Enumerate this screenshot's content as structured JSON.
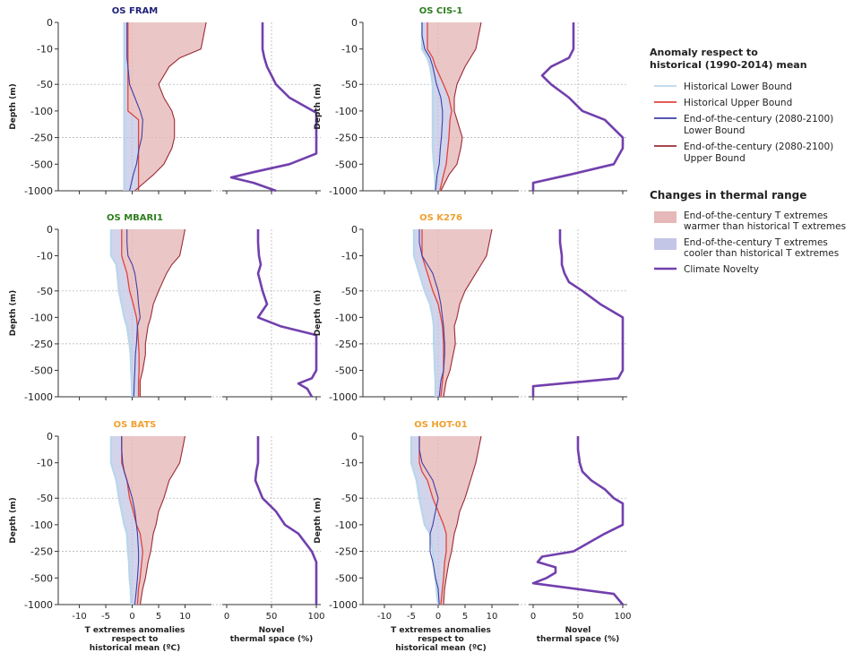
{
  "figure": {
    "ylabel": "Depth (m)",
    "xlabel_anom": [
      "T extremes anomalies",
      "respect to",
      "historical mean (ºC)"
    ],
    "xlabel_novel": [
      "Novel",
      "thermal space (%)"
    ],
    "ytick_labels": [
      "0",
      "-10",
      "-50",
      "-100",
      "-250",
      "-500",
      "-1000"
    ],
    "anom_tick_labels": [
      "-10",
      "-5",
      "0",
      "5",
      "10"
    ],
    "novel_tick_labels": [
      "0",
      "50",
      "100"
    ]
  },
  "legend": {
    "title1": [
      "Anomaly respect to",
      "historical (1990-2014) mean"
    ],
    "items1": [
      {
        "lines": [
          "Historical Lower Bound"
        ],
        "color": "#b9d7ea"
      },
      {
        "lines": [
          "Historical Upper Bound"
        ],
        "color": "#e0443d"
      },
      {
        "lines": [
          "End-of-the-century (2080-2100)",
          "Lower Bound"
        ],
        "color": "#3f3fa8"
      },
      {
        "lines": [
          "End-of-the-century (2080-2100)",
          "Upper Bound"
        ],
        "color": "#9b2b35"
      }
    ],
    "title2": "Changes in thermal range",
    "items2": [
      {
        "lines": [
          "End-of-the-century T extremes",
          "warmer than historical T extremes"
        ],
        "color": "#e6b8b8",
        "kind": "patch"
      },
      {
        "lines": [
          "End-of-the-century T extremes",
          "cooler than historical T extremes"
        ],
        "color": "#c3c6e6",
        "kind": "patch"
      },
      {
        "lines": [
          "Climate Novelty"
        ],
        "color": "#7240ad",
        "kind": "line"
      }
    ]
  },
  "colors": {
    "hist_lower": "#b9d7ea",
    "hist_upper": "#e0443d",
    "eoc_lower": "#3f3fa8",
    "eoc_upper": "#9b2b35",
    "warm_fill": "#e6b8b8",
    "cool_fill": "#c3c6e6",
    "novelty": "#7240ad",
    "title_navy": "#1f1f7a",
    "title_green": "#2e7d1f",
    "title_orange": "#f0a030"
  },
  "chart_data": {
    "type": "line",
    "depths": [
      0,
      5,
      10,
      20,
      30,
      50,
      75,
      100,
      150,
      250,
      350,
      500,
      700,
      1000
    ],
    "panels": [
      {
        "title": "OS FRAM",
        "title_color": "#1f1f7a",
        "hist_lower": [
          -1.5,
          -1.5,
          -1.5,
          -1.5,
          -1.5,
          -1.5,
          -1.5,
          -1.5,
          -1.5,
          -1.5,
          -1.5,
          -1.5,
          -1.5,
          -1.5
        ],
        "hist_upper": [
          -0.8,
          -0.8,
          -0.8,
          -0.8,
          -0.8,
          -0.8,
          -0.8,
          -0.8,
          1.2,
          1.2,
          1.2,
          1.2,
          1.2,
          1.2
        ],
        "eoc_lower": [
          -1.0,
          -1.0,
          -1.0,
          -1.0,
          -0.8,
          -0.5,
          0.5,
          1.5,
          2.0,
          1.8,
          1.3,
          0.8,
          0.2,
          -0.5
        ],
        "eoc_upper": [
          14.0,
          13.5,
          13.0,
          9.0,
          7.0,
          5.0,
          6.0,
          7.5,
          8.0,
          8.0,
          7.5,
          6.0,
          4.0,
          0.5
        ],
        "novelty": [
          {
            "d": 0,
            "v": 40
          },
          {
            "d": 5,
            "v": 40
          },
          {
            "d": 10,
            "v": 40
          },
          {
            "d": 20,
            "v": 42
          },
          {
            "d": 30,
            "v": 45
          },
          {
            "d": 50,
            "v": 55
          },
          {
            "d": 75,
            "v": 70
          },
          {
            "d": 110,
            "v": 100
          },
          {
            "d": 150,
            "v": 100
          },
          {
            "d": 250,
            "v": 100
          },
          {
            "d": 400,
            "v": 100
          },
          {
            "d": 500,
            "v": 70
          },
          {
            "d": 650,
            "v": 30
          },
          {
            "d": 750,
            "v": 5
          },
          {
            "d": 850,
            "v": 30
          },
          {
            "d": 1000,
            "v": 55
          }
        ]
      },
      {
        "title": "OS CIS-1",
        "title_color": "#2e7d1f",
        "hist_lower": [
          -3.0,
          -3.0,
          -3.0,
          -2.0,
          -1.5,
          -1.0,
          -1.0,
          -1.0,
          -1.0,
          -1.0,
          -1.0,
          -0.8,
          -0.6,
          -0.5
        ],
        "hist_upper": [
          -2.0,
          -2.0,
          -2.0,
          -1.0,
          -0.5,
          1.0,
          2.0,
          2.5,
          2.2,
          2.0,
          1.8,
          1.5,
          1.0,
          0.3
        ],
        "eoc_lower": [
          -3.0,
          -3.0,
          -2.5,
          -1.5,
          -1.0,
          -0.3,
          0.5,
          0.8,
          0.8,
          0.6,
          0.4,
          0.2,
          -0.2,
          -0.5
        ],
        "eoc_upper": [
          8.0,
          7.5,
          7.0,
          6.0,
          5.0,
          3.5,
          3.0,
          3.0,
          3.5,
          4.5,
          4.2,
          3.5,
          2.0,
          0.5
        ],
        "novelty": [
          {
            "d": 0,
            "v": 45
          },
          {
            "d": 5,
            "v": 45
          },
          {
            "d": 10,
            "v": 45
          },
          {
            "d": 20,
            "v": 40
          },
          {
            "d": 30,
            "v": 20
          },
          {
            "d": 40,
            "v": 10
          },
          {
            "d": 50,
            "v": 20
          },
          {
            "d": 75,
            "v": 40
          },
          {
            "d": 100,
            "v": 55
          },
          {
            "d": 150,
            "v": 80
          },
          {
            "d": 250,
            "v": 100
          },
          {
            "d": 350,
            "v": 100
          },
          {
            "d": 500,
            "v": 90
          },
          {
            "d": 700,
            "v": 40
          },
          {
            "d": 850,
            "v": 0
          },
          {
            "d": 1000,
            "v": 0
          }
        ]
      },
      {
        "title": "OS MBARI1",
        "title_color": "#2e7d1f",
        "hist_lower": [
          -4.0,
          -4.0,
          -4.0,
          -3.0,
          -2.8,
          -2.5,
          -2.0,
          -1.5,
          -1.0,
          -0.5,
          -0.3,
          -0.2,
          -0.1,
          0.0
        ],
        "hist_upper": [
          -2.0,
          -2.0,
          -2.0,
          -1.5,
          -1.0,
          -0.5,
          0.2,
          0.8,
          1.0,
          1.2,
          1.3,
          1.3,
          1.2,
          1.2
        ],
        "eoc_lower": [
          -1.0,
          -1.0,
          -0.8,
          0.0,
          0.5,
          1.0,
          1.2,
          1.5,
          1.0,
          0.8,
          0.6,
          0.5,
          0.4,
          0.3
        ],
        "eoc_upper": [
          10.0,
          9.5,
          9.0,
          7.5,
          6.5,
          5.0,
          4.0,
          3.5,
          3.0,
          2.5,
          2.5,
          2.0,
          1.5,
          1.5
        ],
        "novelty": [
          {
            "d": 0,
            "v": 35
          },
          {
            "d": 5,
            "v": 35
          },
          {
            "d": 10,
            "v": 36
          },
          {
            "d": 20,
            "v": 38
          },
          {
            "d": 30,
            "v": 35
          },
          {
            "d": 50,
            "v": 40
          },
          {
            "d": 75,
            "v": 45
          },
          {
            "d": 100,
            "v": 35
          },
          {
            "d": 150,
            "v": 60
          },
          {
            "d": 200,
            "v": 100
          },
          {
            "d": 250,
            "v": 100
          },
          {
            "d": 350,
            "v": 100
          },
          {
            "d": 500,
            "v": 100
          },
          {
            "d": 650,
            "v": 95
          },
          {
            "d": 750,
            "v": 80
          },
          {
            "d": 850,
            "v": 90
          },
          {
            "d": 1000,
            "v": 95
          }
        ]
      },
      {
        "title": "OS K276",
        "title_color": "#f0a030",
        "hist_lower": [
          -4.5,
          -4.5,
          -4.5,
          -4.0,
          -3.5,
          -2.5,
          -1.5,
          -1.0,
          -0.8,
          -0.8,
          -0.7,
          -0.6,
          -0.5,
          -0.5
        ],
        "hist_upper": [
          -3.0,
          -3.0,
          -3.0,
          -2.5,
          -2.0,
          -1.0,
          0.0,
          0.5,
          0.8,
          1.0,
          1.0,
          1.0,
          0.8,
          0.5
        ],
        "eoc_lower": [
          -3.5,
          -3.5,
          -3.0,
          -2.0,
          -1.0,
          0.0,
          0.5,
          0.8,
          1.0,
          1.2,
          1.2,
          1.0,
          0.5,
          0.2
        ],
        "eoc_upper": [
          10.0,
          9.5,
          9.0,
          8.0,
          7.0,
          5.0,
          4.0,
          3.5,
          3.0,
          3.2,
          2.8,
          2.2,
          1.5,
          1.0
        ],
        "novelty": [
          {
            "d": 0,
            "v": 30
          },
          {
            "d": 5,
            "v": 30
          },
          {
            "d": 10,
            "v": 32
          },
          {
            "d": 20,
            "v": 32
          },
          {
            "d": 30,
            "v": 35
          },
          {
            "d": 40,
            "v": 40
          },
          {
            "d": 50,
            "v": 55
          },
          {
            "d": 75,
            "v": 75
          },
          {
            "d": 100,
            "v": 100
          },
          {
            "d": 150,
            "v": 100
          },
          {
            "d": 250,
            "v": 100
          },
          {
            "d": 350,
            "v": 100
          },
          {
            "d": 500,
            "v": 100
          },
          {
            "d": 650,
            "v": 95
          },
          {
            "d": 800,
            "v": 0
          },
          {
            "d": 1000,
            "v": 0
          }
        ]
      },
      {
        "title": "OS BATS",
        "title_color": "#f0a030",
        "hist_lower": [
          -4.0,
          -4.0,
          -4.0,
          -3.5,
          -3.0,
          -2.5,
          -2.0,
          -1.5,
          -1.0,
          -0.8,
          -0.6,
          -0.5,
          -0.3,
          -0.2
        ],
        "hist_upper": [
          -2.0,
          -2.0,
          -2.0,
          -1.5,
          -1.0,
          -0.5,
          0.2,
          0.8,
          1.5,
          2.0,
          1.8,
          1.5,
          1.2,
          1.0
        ],
        "eoc_lower": [
          -2.0,
          -2.0,
          -1.8,
          -1.5,
          -1.0,
          0.0,
          0.5,
          0.8,
          1.0,
          1.2,
          1.2,
          1.0,
          0.8,
          0.5
        ],
        "eoc_upper": [
          10.0,
          9.5,
          9.0,
          8.0,
          7.0,
          6.0,
          5.0,
          4.5,
          4.0,
          3.5,
          3.0,
          2.5,
          2.0,
          1.5
        ],
        "novelty": [
          {
            "d": 0,
            "v": 35
          },
          {
            "d": 5,
            "v": 35
          },
          {
            "d": 10,
            "v": 35
          },
          {
            "d": 20,
            "v": 33
          },
          {
            "d": 30,
            "v": 32
          },
          {
            "d": 50,
            "v": 40
          },
          {
            "d": 75,
            "v": 55
          },
          {
            "d": 100,
            "v": 65
          },
          {
            "d": 150,
            "v": 80
          },
          {
            "d": 250,
            "v": 95
          },
          {
            "d": 350,
            "v": 100
          },
          {
            "d": 500,
            "v": 100
          },
          {
            "d": 700,
            "v": 100
          },
          {
            "d": 1000,
            "v": 100
          }
        ]
      },
      {
        "title": "OS HOT-01",
        "title_color": "#f0a030",
        "hist_lower": [
          -5.0,
          -5.0,
          -5.0,
          -4.5,
          -4.0,
          -3.5,
          -3.0,
          -2.5,
          -1.5,
          -1.0,
          -0.8,
          -0.5,
          -0.3,
          0.0
        ],
        "hist_upper": [
          -3.5,
          -3.5,
          -3.5,
          -3.0,
          -2.0,
          -1.0,
          0.0,
          1.0,
          1.5,
          1.5,
          1.2,
          1.0,
          0.8,
          0.5
        ],
        "eoc_lower": [
          -3.5,
          -3.5,
          -3.0,
          -2.0,
          -1.0,
          0.0,
          -0.5,
          -1.0,
          -1.5,
          -1.5,
          -1.0,
          -0.5,
          0.0,
          0.2
        ],
        "eoc_upper": [
          8.0,
          7.5,
          7.0,
          6.5,
          6.0,
          5.0,
          4.0,
          3.5,
          3.0,
          2.5,
          2.0,
          1.5,
          1.2,
          1.0
        ],
        "novelty": [
          {
            "d": 0,
            "v": 50
          },
          {
            "d": 5,
            "v": 50
          },
          {
            "d": 10,
            "v": 52
          },
          {
            "d": 20,
            "v": 55
          },
          {
            "d": 30,
            "v": 65
          },
          {
            "d": 40,
            "v": 80
          },
          {
            "d": 50,
            "v": 90
          },
          {
            "d": 60,
            "v": 100
          },
          {
            "d": 100,
            "v": 100
          },
          {
            "d": 150,
            "v": 80
          },
          {
            "d": 250,
            "v": 45
          },
          {
            "d": 300,
            "v": 10
          },
          {
            "d": 350,
            "v": 5
          },
          {
            "d": 400,
            "v": 25
          },
          {
            "d": 450,
            "v": 25
          },
          {
            "d": 500,
            "v": 15
          },
          {
            "d": 600,
            "v": 0
          },
          {
            "d": 800,
            "v": 90
          },
          {
            "d": 1000,
            "v": 100
          }
        ]
      }
    ]
  }
}
